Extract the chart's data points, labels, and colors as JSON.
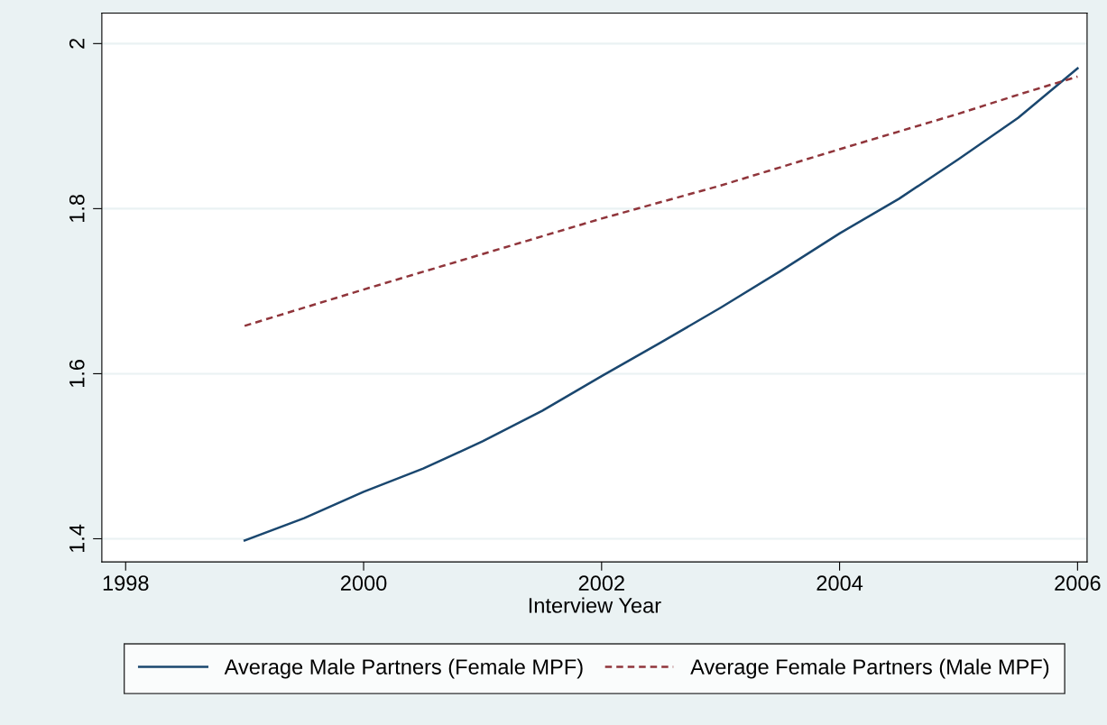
{
  "chart_data": {
    "type": "line",
    "xlabel": "Interview Year",
    "xlim": [
      1997.8,
      2006.08
    ],
    "xticks": [
      1998,
      2000,
      2002,
      2004,
      2006
    ],
    "ylim": [
      1.372,
      2.037
    ],
    "yticks": [
      1.4,
      1.6,
      1.8,
      2
    ],
    "grid": "y",
    "legend": "bottom",
    "series": [
      {
        "name": "Average Male Partners (Female MPF)",
        "color": "#1a476f",
        "line_style": "solid",
        "x": [
          1999,
          1999.5,
          2000,
          2000.5,
          2001,
          2001.5,
          2002,
          2002.5,
          2003,
          2003.5,
          2004,
          2004.5,
          2005,
          2005.5,
          2006
        ],
        "values": [
          1.398,
          1.425,
          1.457,
          1.485,
          1.518,
          1.555,
          1.597,
          1.638,
          1.68,
          1.724,
          1.77,
          1.812,
          1.86,
          1.91,
          1.97
        ]
      },
      {
        "name": "Average Female Partners (Male MPF)",
        "color": "#90353b",
        "line_style": "dashed",
        "x": [
          1999,
          2000,
          2001,
          2002,
          2003,
          2004,
          2005,
          2005.5,
          2006
        ],
        "values": [
          1.658,
          1.702,
          1.745,
          1.788,
          1.828,
          1.872,
          1.915,
          1.938,
          1.96
        ]
      }
    ]
  }
}
